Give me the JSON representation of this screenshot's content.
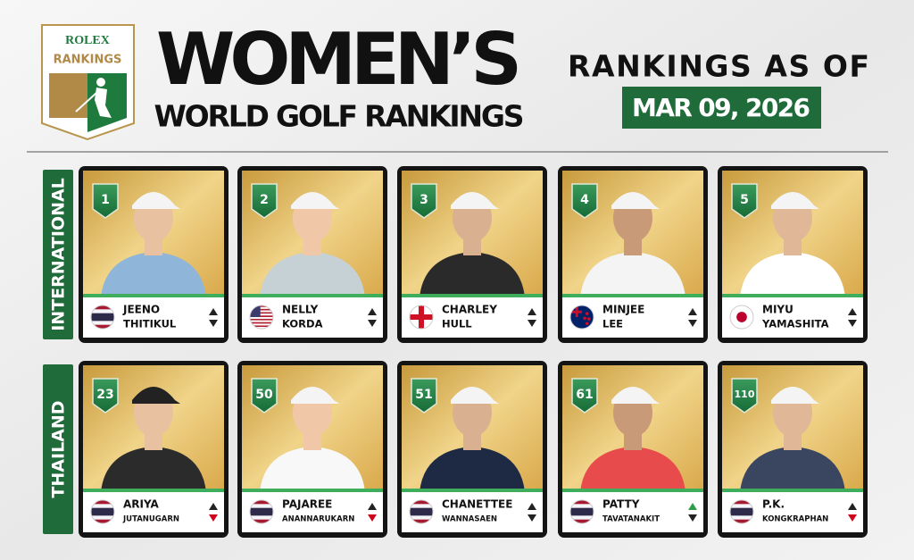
{
  "logo": {
    "brand": "ROLEX",
    "label": "RANKINGS"
  },
  "header": {
    "title": "WOMEN’S",
    "subtitle": "WORLD GOLF RANKINGS",
    "date_label": "RANKINGS AS OF",
    "date": "MAR 09, 2026"
  },
  "sections": [
    {
      "label": "INTERNATIONAL",
      "players": [
        {
          "rank": 1,
          "first": "JEENO",
          "last": "THITIKUL",
          "flag": "TH",
          "arrows": [
            "#222222",
            "#222222"
          ]
        },
        {
          "rank": 2,
          "first": "NELLY",
          "last": "KORDA",
          "flag": "US",
          "arrows": [
            "#222222",
            "#222222"
          ]
        },
        {
          "rank": 3,
          "first": "CHARLEY",
          "last": "HULL",
          "flag": "GB",
          "arrows": [
            "#222222",
            "#222222"
          ]
        },
        {
          "rank": 4,
          "first": "MINJEE",
          "last": "LEE",
          "flag": "NZ",
          "arrows": [
            "#222222",
            "#222222"
          ]
        },
        {
          "rank": 5,
          "first": "MIYU",
          "last": "YAMASHITA",
          "flag": "JP",
          "arrows": [
            "#222222",
            "#222222"
          ]
        }
      ]
    },
    {
      "label": "THAILAND",
      "players": [
        {
          "rank": 23,
          "first": "ARIYA",
          "last": "JUTANUGARN",
          "flag": "TH",
          "arrows": [
            "#222222",
            "#d0021b"
          ]
        },
        {
          "rank": 50,
          "first": "PAJAREE",
          "last": "ANANNARUKARN",
          "flag": "TH",
          "arrows": [
            "#222222",
            "#d0021b"
          ]
        },
        {
          "rank": 51,
          "first": "CHANETTEE",
          "last": "WANNASAEN",
          "flag": "TH",
          "arrows": [
            "#222222",
            "#222222"
          ]
        },
        {
          "rank": 61,
          "first": "PATTY",
          "last": "TAVATANAKIT",
          "flag": "TH",
          "arrows": [
            "#2e9c4a",
            "#222222"
          ]
        },
        {
          "rank": 110,
          "first": "P.K.",
          "last": "KONGKRAPHAN",
          "flag": "TH",
          "arrows": [
            "#222222",
            "#d0021b"
          ]
        }
      ]
    }
  ]
}
